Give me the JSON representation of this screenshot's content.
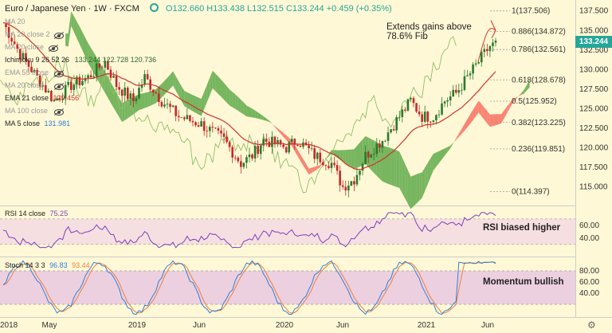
{
  "header": {
    "pair": "Euro / Japanese Yen",
    "interval": "1W",
    "source": "FXCM",
    "ohlc": "O132.660 H133.438 L132.515 C133.244 +0.459 (+0.35%)"
  },
  "price_tag": "133.244",
  "colors": {
    "up": "#26a69a",
    "down": "#ef5350",
    "cloud_bull": "#5faa4a",
    "cloud_bear": "#f87060",
    "ema": "#d0342c",
    "lagging": "#8fbf6a",
    "rsi": "#7e3fbf",
    "stoch_k": "#2f7fd8",
    "stoch_d": "#ef7f3a"
  },
  "indicators": {
    "ma20": "MA 20",
    "ma20c2": "MA 20 close 2",
    "ma20c": "MA 20 close",
    "ichimoku": "Ichimoku 9 26 52 26",
    "ichimoku_vals": "133.244  122.728  120.736",
    "ema55": "EMA 55 close",
    "ma20b": "MA 20 close",
    "ema21": "EMA 21 close",
    "ema21_val": "129.456",
    "ma100": "MA 100 close",
    "ma5": "MA 5 close",
    "ma5_val": "131.981"
  },
  "annotations": {
    "headline_1": "Extends gains above",
    "headline_2": "78.6% Fib",
    "rsi_note": "RSI biased higher",
    "stoch_note": "Momentum bullish"
  },
  "price_axis": [
    "137.500",
    "135.000",
    "132.500",
    "130.000",
    "127.500",
    "125.000",
    "122.500",
    "120.000",
    "117.500",
    "115.000"
  ],
  "fib_levels": [
    {
      "label": "1(137.506)",
      "price": 137.506
    },
    {
      "label": "0.886(134.872)",
      "price": 134.872
    },
    {
      "label": "0.786(132.561)",
      "price": 132.561
    },
    {
      "label": "0.618(128.678)",
      "price": 128.678
    },
    {
      "label": "0.5(125.952)",
      "price": 125.952
    },
    {
      "label": "0.382(123.225)",
      "price": 123.225
    },
    {
      "label": "0.236(119.851)",
      "price": 119.851
    },
    {
      "label": "0(114.397)",
      "price": 114.397
    }
  ],
  "rsi": {
    "label": "RSI 14 close",
    "value": "75.25",
    "axis": [
      "60.00",
      "40.00"
    ]
  },
  "stoch": {
    "label": "Stoch 14 3 3",
    "k": "96.83",
    "d": "93.44",
    "axis": [
      "80.00",
      "60.00",
      "40.00"
    ]
  },
  "time_axis": [
    "2018",
    "May",
    "2019",
    "Jun",
    "2020",
    "Jun",
    "2021",
    "Jun"
  ],
  "settings_icon": "gear-icon"
}
